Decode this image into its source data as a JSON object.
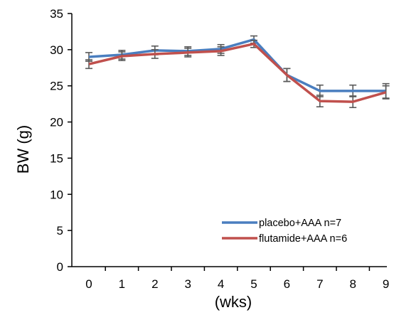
{
  "chart_data": {
    "type": "line",
    "title": "",
    "xlabel": "(wks)",
    "ylabel": "BW (g)",
    "x": [
      0,
      1,
      2,
      3,
      4,
      5,
      6,
      7,
      8,
      9
    ],
    "x_ticks": [
      "0",
      "1",
      "2",
      "3",
      "4",
      "5",
      "6",
      "7",
      "8",
      "9"
    ],
    "ylim": [
      0,
      35
    ],
    "y_ticks": [
      "0",
      "5",
      "10",
      "15",
      "20",
      "25",
      "30",
      "35"
    ],
    "grid": false,
    "legend_position": "bottom-right",
    "series": [
      {
        "name": "placebo+AAA  n=7",
        "color": "#4a7ebf",
        "values": [
          29.0,
          29.3,
          29.9,
          29.8,
          30.1,
          31.4,
          26.5,
          24.3,
          24.3,
          24.3
        ],
        "errors": [
          0.6,
          0.6,
          0.6,
          0.6,
          0.6,
          0.5,
          0.9,
          0.8,
          0.8,
          1.0
        ]
      },
      {
        "name": "flutamide+AAA  n=6",
        "color": "#c0504d",
        "values": [
          28.0,
          29.1,
          29.4,
          29.6,
          29.8,
          30.8,
          26.5,
          22.9,
          22.8,
          24.1
        ],
        "errors": [
          0.6,
          0.6,
          0.6,
          0.6,
          0.6,
          0.5,
          0.9,
          0.8,
          0.8,
          0.9
        ]
      }
    ],
    "error_bar_color": "#595959"
  }
}
